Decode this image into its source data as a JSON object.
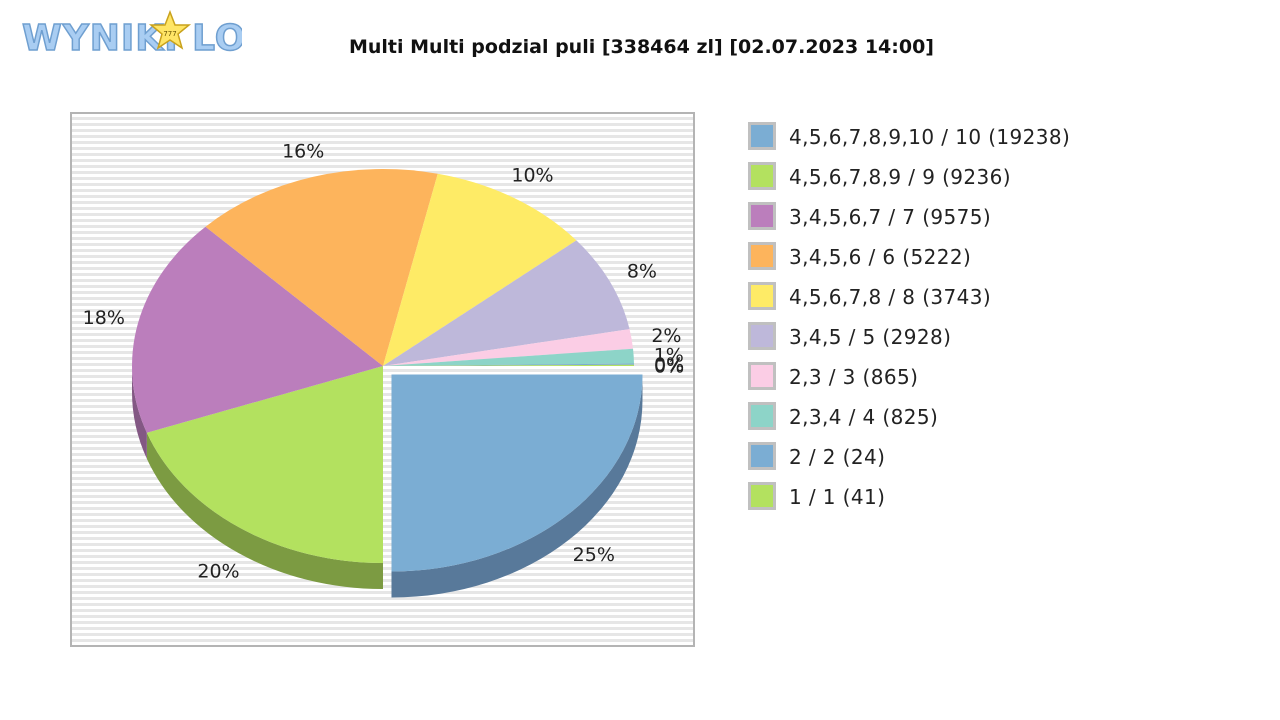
{
  "logo": {
    "text": "WYNIKI LOTTO",
    "star_text": "777"
  },
  "title": "Multi Multi podzial puli [338464 zl] [02.07.2023 14:00]",
  "chart_data": {
    "type": "pie",
    "title": "Multi Multi podzial puli [338464 zl] [02.07.2023 14:00]",
    "style": "3d-exploded",
    "slices": [
      {
        "label": "4,5,6,7,8,9,10 / 10 (19238)",
        "value": 19238,
        "percent_label": "25%",
        "color": "#7badd3",
        "shade": "#58799a"
      },
      {
        "label": "4,5,6,7,8,9 / 9 (9236)",
        "value": 9236,
        "percent_label": "20%",
        "color": "#b3e15f",
        "shade": "#7c9b42"
      },
      {
        "label": "3,4,5,6,7 / 7 (9575)",
        "value": 9575,
        "percent_label": "18%",
        "color": "#bb7ebc",
        "shade": "#835884"
      },
      {
        "label": "3,4,5,6 / 6 (5222)",
        "value": 5222,
        "percent_label": "16%",
        "color": "#fdb45c",
        "shade": "#b07d40"
      },
      {
        "label": "4,5,6,7,8 / 8 (3743)",
        "value": 3743,
        "percent_label": "10%",
        "color": "#feeb66",
        "shade": "#b1a447"
      },
      {
        "label": "3,4,5 / 5 (2928)",
        "value": 2928,
        "percent_label": "8%",
        "color": "#beb8da",
        "shade": "#858198"
      },
      {
        "label": "2,3 / 3 (865)",
        "value": 865,
        "percent_label": "2%",
        "color": "#fbcde5",
        "shade": "#af8fa0"
      },
      {
        "label": "2,3,4 / 4 (825)",
        "value": 825,
        "percent_label": "1%",
        "color": "#8dd4c8",
        "shade": "#62948c"
      },
      {
        "label": "2 / 2 (24)",
        "value": 24,
        "percent_label": "0%",
        "color": "#7badd3",
        "shade": "#58799a"
      },
      {
        "label": "1 / 1 (41)",
        "value": 41,
        "percent_label": "0%",
        "color": "#b3e15f",
        "shade": "#7c9b42"
      }
    ],
    "chart_order": [
      0,
      1,
      2,
      3,
      4,
      5,
      6,
      7,
      8,
      9
    ],
    "pie_fractions": [
      0.25,
      0.195,
      0.18,
      0.16,
      0.105,
      0.08,
      0.016,
      0.012,
      0.001,
      0.001
    ],
    "exploded_slice": 0,
    "legend_order": [
      0,
      1,
      2,
      3,
      4,
      5,
      6,
      7,
      8,
      9
    ],
    "legend_position": "right"
  }
}
